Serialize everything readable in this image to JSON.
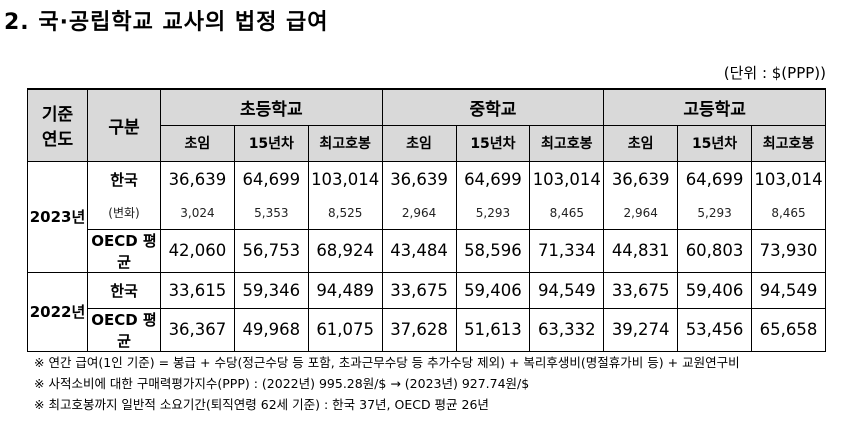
{
  "title": "2. 국·공립학교 교사의 법정 급여",
  "unit": "(단위 : $(PPP))",
  "table": {
    "headers": {
      "year": "기준\n연도",
      "item": "구분",
      "groups": [
        "초등학교",
        "중학교",
        "고등학교"
      ],
      "sub": [
        "초임",
        "15년차",
        "최고호봉"
      ]
    },
    "years": [
      {
        "year": "2023년",
        "rows": [
          {
            "label": "한국",
            "values": [
              "36,639",
              "64,699",
              "103,014",
              "36,639",
              "64,699",
              "103,014",
              "36,639",
              "64,699",
              "103,014"
            ]
          },
          {
            "label": "(변화)",
            "values": [
              "3,024",
              "5,353",
              "8,525",
              "2,964",
              "5,293",
              "8,465",
              "2,964",
              "5,293",
              "8,465"
            ]
          },
          {
            "label": "OECD 평균",
            "values": [
              "42,060",
              "56,753",
              "68,924",
              "43,484",
              "58,596",
              "71,334",
              "44,831",
              "60,803",
              "73,930"
            ]
          }
        ]
      },
      {
        "year": "2022년",
        "rows": [
          {
            "label": "한국",
            "values": [
              "33,615",
              "59,346",
              "94,489",
              "33,675",
              "59,406",
              "94,549",
              "33,675",
              "59,406",
              "94,549"
            ]
          },
          {
            "label": "OECD 평균",
            "values": [
              "36,367",
              "49,968",
              "61,075",
              "37,628",
              "51,613",
              "63,332",
              "39,274",
              "53,456",
              "65,658"
            ]
          }
        ]
      }
    ]
  },
  "notes": [
    "※ 연간 급여(1인 기준) = 봉급 + 수당(정근수당 등 포함, 초과근무수당 등 추가수당 제외) + 복리후생비(명절휴가비 등) + 교원연구비",
    "※ 사적소비에 대한 구매력평가지수(PPP) : (2022년) 995.28원/$ → (2023년) 927.74원/$",
    "※ 최고호봉까지 일반적 소요기간(퇴직연령 62세 기준) : 한국 37년, OECD 평균 26년"
  ]
}
